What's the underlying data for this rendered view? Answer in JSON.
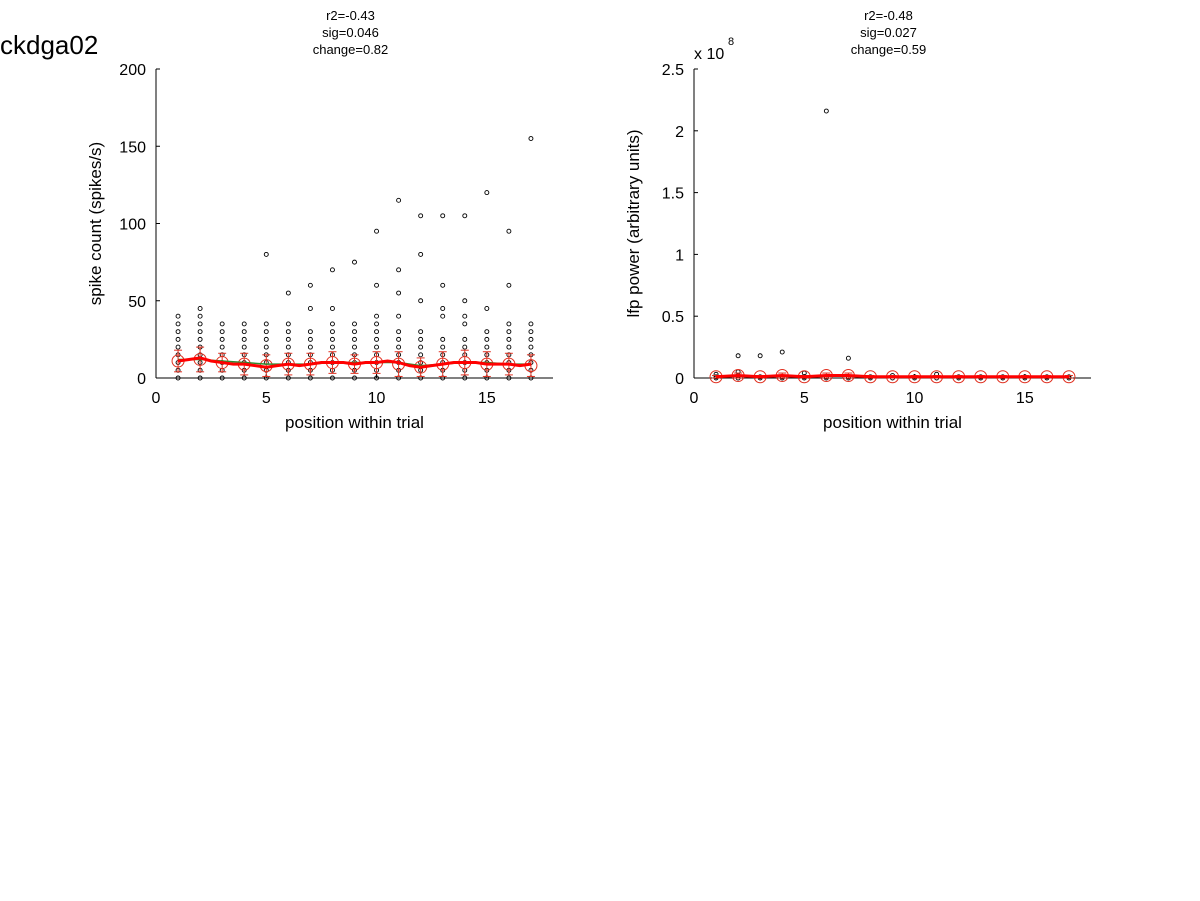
{
  "figure_label": "ckdga02",
  "chart_data": [
    {
      "type": "scatter",
      "title_lines": [
        "r2=-0.43",
        "sig=0.046",
        "change=0.82"
      ],
      "xlabel": "position within trial",
      "ylabel": "spike count (spikes/s)",
      "xlim": [
        0,
        18
      ],
      "ylim": [
        0,
        200
      ],
      "xticks": [
        0,
        5,
        10,
        15
      ],
      "yticks": [
        0,
        50,
        100,
        150,
        200
      ],
      "xtick_labels": [
        "0",
        "5",
        "10",
        "15"
      ],
      "ytick_labels": [
        "0",
        "50",
        "100",
        "150",
        "200"
      ],
      "grid": false,
      "series": [
        {
          "marker": "small-circle",
          "color": "#000000",
          "points": [
            [
              1,
              0
            ],
            [
              1,
              5
            ],
            [
              1,
              10
            ],
            [
              1,
              15
            ],
            [
              1,
              20
            ],
            [
              1,
              25
            ],
            [
              1,
              30
            ],
            [
              1,
              35
            ],
            [
              1,
              40
            ],
            [
              2,
              0
            ],
            [
              2,
              5
            ],
            [
              2,
              10
            ],
            [
              2,
              15
            ],
            [
              2,
              20
            ],
            [
              2,
              25
            ],
            [
              2,
              30
            ],
            [
              2,
              35
            ],
            [
              2,
              40
            ],
            [
              2,
              45
            ],
            [
              3,
              0
            ],
            [
              3,
              5
            ],
            [
              3,
              10
            ],
            [
              3,
              15
            ],
            [
              3,
              20
            ],
            [
              3,
              25
            ],
            [
              3,
              30
            ],
            [
              3,
              35
            ],
            [
              4,
              0
            ],
            [
              4,
              5
            ],
            [
              4,
              10
            ],
            [
              4,
              15
            ],
            [
              4,
              20
            ],
            [
              4,
              25
            ],
            [
              4,
              30
            ],
            [
              4,
              35
            ],
            [
              5,
              0
            ],
            [
              5,
              5
            ],
            [
              5,
              10
            ],
            [
              5,
              15
            ],
            [
              5,
              20
            ],
            [
              5,
              25
            ],
            [
              5,
              30
            ],
            [
              5,
              35
            ],
            [
              5,
              80
            ],
            [
              6,
              0
            ],
            [
              6,
              5
            ],
            [
              6,
              10
            ],
            [
              6,
              15
            ],
            [
              6,
              20
            ],
            [
              6,
              25
            ],
            [
              6,
              30
            ],
            [
              6,
              35
            ],
            [
              6,
              55
            ],
            [
              7,
              0
            ],
            [
              7,
              5
            ],
            [
              7,
              10
            ],
            [
              7,
              15
            ],
            [
              7,
              20
            ],
            [
              7,
              25
            ],
            [
              7,
              30
            ],
            [
              7,
              45
            ],
            [
              7,
              60
            ],
            [
              8,
              0
            ],
            [
              8,
              5
            ],
            [
              8,
              10
            ],
            [
              8,
              15
            ],
            [
              8,
              20
            ],
            [
              8,
              25
            ],
            [
              8,
              30
            ],
            [
              8,
              35
            ],
            [
              8,
              45
            ],
            [
              8,
              70
            ],
            [
              9,
              0
            ],
            [
              9,
              5
            ],
            [
              9,
              10
            ],
            [
              9,
              15
            ],
            [
              9,
              20
            ],
            [
              9,
              25
            ],
            [
              9,
              30
            ],
            [
              9,
              35
            ],
            [
              9,
              75
            ],
            [
              10,
              0
            ],
            [
              10,
              5
            ],
            [
              10,
              10
            ],
            [
              10,
              15
            ],
            [
              10,
              20
            ],
            [
              10,
              25
            ],
            [
              10,
              30
            ],
            [
              10,
              35
            ],
            [
              10,
              40
            ],
            [
              10,
              60
            ],
            [
              10,
              95
            ],
            [
              11,
              0
            ],
            [
              11,
              5
            ],
            [
              11,
              10
            ],
            [
              11,
              15
            ],
            [
              11,
              20
            ],
            [
              11,
              25
            ],
            [
              11,
              30
            ],
            [
              11,
              40
            ],
            [
              11,
              55
            ],
            [
              11,
              70
            ],
            [
              11,
              115
            ],
            [
              12,
              0
            ],
            [
              12,
              5
            ],
            [
              12,
              10
            ],
            [
              12,
              15
            ],
            [
              12,
              20
            ],
            [
              12,
              25
            ],
            [
              12,
              30
            ],
            [
              12,
              50
            ],
            [
              12,
              80
            ],
            [
              12,
              105
            ],
            [
              13,
              0
            ],
            [
              13,
              5
            ],
            [
              13,
              10
            ],
            [
              13,
              15
            ],
            [
              13,
              20
            ],
            [
              13,
              25
            ],
            [
              13,
              40
            ],
            [
              13,
              45
            ],
            [
              13,
              60
            ],
            [
              13,
              105
            ],
            [
              14,
              0
            ],
            [
              14,
              5
            ],
            [
              14,
              10
            ],
            [
              14,
              15
            ],
            [
              14,
              20
            ],
            [
              14,
              25
            ],
            [
              14,
              35
            ],
            [
              14,
              40
            ],
            [
              14,
              50
            ],
            [
              14,
              105
            ],
            [
              15,
              0
            ],
            [
              15,
              5
            ],
            [
              15,
              10
            ],
            [
              15,
              15
            ],
            [
              15,
              20
            ],
            [
              15,
              25
            ],
            [
              15,
              30
            ],
            [
              15,
              45
            ],
            [
              15,
              120
            ],
            [
              16,
              0
            ],
            [
              16,
              5
            ],
            [
              16,
              10
            ],
            [
              16,
              15
            ],
            [
              16,
              20
            ],
            [
              16,
              25
            ],
            [
              16,
              30
            ],
            [
              16,
              35
            ],
            [
              16,
              60
            ],
            [
              16,
              95
            ],
            [
              17,
              0
            ],
            [
              17,
              5
            ],
            [
              17,
              10
            ],
            [
              17,
              15
            ],
            [
              17,
              20
            ],
            [
              17,
              25
            ],
            [
              17,
              30
            ],
            [
              17,
              35
            ],
            [
              17,
              155
            ]
          ]
        },
        {
          "marker": "mean-circle",
          "color": "#e03020",
          "x": [
            1,
            2,
            3,
            4,
            5,
            6,
            7,
            8,
            9,
            10,
            11,
            12,
            13,
            14,
            15,
            16,
            17
          ],
          "values": [
            11,
            12,
            10,
            9,
            8,
            9,
            9,
            10,
            9,
            10,
            9,
            7,
            9,
            10,
            9,
            9,
            8
          ],
          "errors": [
            7,
            8,
            6,
            7,
            7,
            7,
            7,
            7,
            6,
            7,
            8,
            6,
            8,
            8,
            8,
            7,
            7
          ]
        },
        {
          "marker": "line",
          "color": "#2e8b2e",
          "x": [
            1,
            2,
            3,
            4,
            5,
            6,
            7,
            8,
            9,
            10,
            11,
            12,
            13,
            14,
            15,
            16,
            17
          ],
          "values": [
            12,
            12,
            11,
            10,
            9,
            9,
            9,
            10,
            10,
            10,
            10,
            8,
            9,
            10,
            10,
            9,
            9
          ]
        },
        {
          "marker": "line",
          "color": "#ff0000",
          "x": [
            1,
            1.5,
            2,
            2.5,
            3,
            3.5,
            4,
            4.5,
            5,
            5.5,
            6,
            6.5,
            7,
            7.5,
            8,
            8.5,
            9,
            9.5,
            10,
            10.5,
            11,
            11.5,
            12,
            12.5,
            13,
            13.5,
            14,
            14.5,
            15,
            15.5,
            16,
            16.5,
            17
          ],
          "values": [
            11,
            12,
            13,
            11,
            10,
            9,
            9,
            8,
            7,
            8,
            9,
            8,
            9,
            10,
            10,
            10,
            9,
            10,
            10,
            11,
            10,
            8,
            7,
            8,
            9,
            10,
            10,
            10,
            9,
            9,
            9,
            8,
            9
          ]
        }
      ]
    },
    {
      "type": "scatter",
      "title_lines": [
        "r2=-0.48",
        "sig=0.027",
        "change=0.59"
      ],
      "xlabel": "position within trial",
      "ylabel": "lfp power (arbitrary units)",
      "y_multiplier": "x 10",
      "y_multiplier_exponent": "8",
      "xlim": [
        0,
        18
      ],
      "ylim": [
        0,
        2.5
      ],
      "xticks": [
        0,
        5,
        10,
        15
      ],
      "yticks": [
        0,
        0.5,
        1,
        1.5,
        2,
        2.5
      ],
      "xtick_labels": [
        "0",
        "5",
        "10",
        "15"
      ],
      "ytick_labels": [
        "0",
        "0.5",
        "1",
        "1.5",
        "2",
        "2.5"
      ],
      "grid": false,
      "series": [
        {
          "marker": "small-circle",
          "color": "#000000",
          "points": [
            [
              1,
              0
            ],
            [
              1,
              0.01
            ],
            [
              1,
              0.03
            ],
            [
              2,
              0
            ],
            [
              2,
              0.02
            ],
            [
              2,
              0.05
            ],
            [
              2,
              0.18
            ],
            [
              3,
              0
            ],
            [
              3,
              0.01
            ],
            [
              3,
              0.18
            ],
            [
              4,
              0
            ],
            [
              4,
              0.01
            ],
            [
              4,
              0.21
            ],
            [
              5,
              0
            ],
            [
              5,
              0.01
            ],
            [
              5,
              0.04
            ],
            [
              6,
              0
            ],
            [
              6,
              0.01
            ],
            [
              6,
              2.16
            ],
            [
              7,
              0
            ],
            [
              7,
              0.01
            ],
            [
              7,
              0.16
            ],
            [
              8,
              0
            ],
            [
              8,
              0.01
            ],
            [
              9,
              0
            ],
            [
              9,
              0.02
            ],
            [
              10,
              0
            ],
            [
              10,
              0.01
            ],
            [
              11,
              0
            ],
            [
              11,
              0.03
            ],
            [
              12,
              0
            ],
            [
              12,
              0.01
            ],
            [
              13,
              0
            ],
            [
              13,
              0.01
            ],
            [
              14,
              0
            ],
            [
              14,
              0.01
            ],
            [
              15,
              0
            ],
            [
              15,
              0.01
            ],
            [
              16,
              0
            ],
            [
              16,
              0.01
            ],
            [
              17,
              0
            ],
            [
              17,
              0.01
            ]
          ]
        },
        {
          "marker": "mean-circle",
          "color": "#e03020",
          "x": [
            1,
            2,
            3,
            4,
            5,
            6,
            7,
            8,
            9,
            10,
            11,
            12,
            13,
            14,
            15,
            16,
            17
          ],
          "values": [
            0.01,
            0.02,
            0.01,
            0.02,
            0.01,
            0.02,
            0.02,
            0.01,
            0.01,
            0.01,
            0.01,
            0.01,
            0.01,
            0.01,
            0.01,
            0.01,
            0.01
          ],
          "errors": [
            0.01,
            0.02,
            0.01,
            0.02,
            0.01,
            0.02,
            0.02,
            0.01,
            0.01,
            0.01,
            0.01,
            0.01,
            0.01,
            0.01,
            0.01,
            0.01,
            0.01
          ]
        },
        {
          "marker": "line",
          "color": "#ff0000",
          "x": [
            1,
            2,
            3,
            4,
            5,
            6,
            7,
            8,
            9,
            10,
            11,
            12,
            13,
            14,
            15,
            16,
            17
          ],
          "values": [
            0.01,
            0.02,
            0.01,
            0.02,
            0.01,
            0.02,
            0.02,
            0.01,
            0.01,
            0.01,
            0.01,
            0.01,
            0.01,
            0.01,
            0.01,
            0.01,
            0.01
          ]
        }
      ]
    }
  ]
}
